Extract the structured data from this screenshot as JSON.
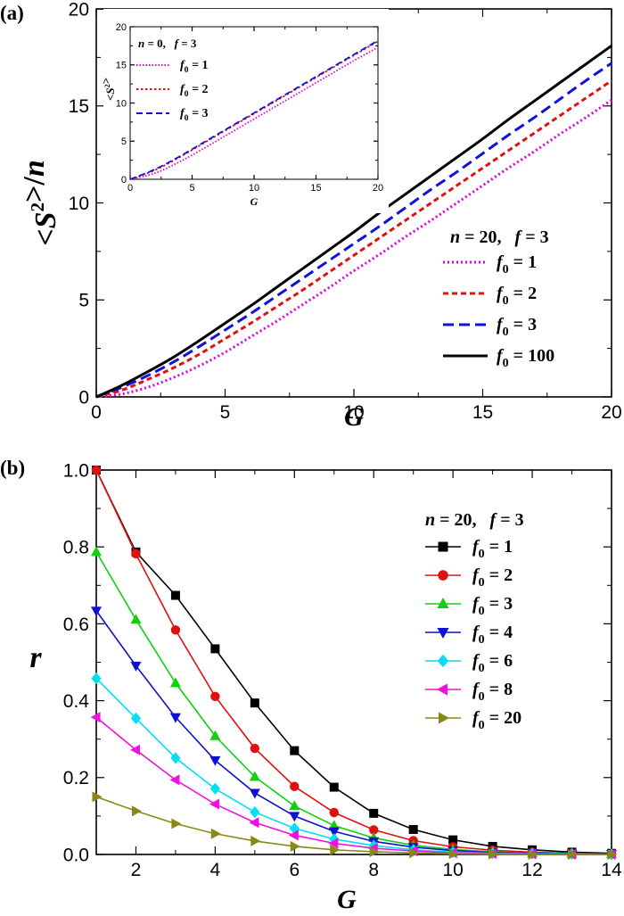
{
  "chart_data": [
    {
      "type": "line",
      "panel_label": "(a)",
      "xlabel": "G",
      "ylabel": "<S²>/n",
      "xlim": [
        0,
        20
      ],
      "ylim": [
        0,
        20
      ],
      "xticks": [
        "0",
        "5",
        "10",
        "15",
        "20"
      ],
      "yticks": [
        "0",
        "5",
        "10",
        "15",
        "20"
      ],
      "legend": {
        "header": "n = 20,   f = 3",
        "placement": "lower-right"
      },
      "series": [
        {
          "name": "f0 = 1",
          "style": "dotted",
          "color": "#e000e0",
          "x": [
            0,
            1,
            2,
            3,
            4,
            5,
            6,
            7,
            8,
            9,
            10,
            11,
            12,
            13,
            14,
            15,
            16,
            17,
            18,
            19,
            20
          ],
          "y": [
            0,
            0.15,
            0.5,
            1.0,
            1.6,
            2.3,
            3.1,
            3.9,
            4.75,
            5.6,
            6.5,
            7.35,
            8.25,
            9.1,
            10.0,
            10.9,
            11.8,
            12.65,
            13.55,
            14.4,
            15.3
          ]
        },
        {
          "name": "f0 = 2",
          "style": "short-dash",
          "color": "#e01010",
          "x": [
            0,
            1,
            2,
            3,
            4,
            5,
            6,
            7,
            8,
            9,
            10,
            11,
            12,
            13,
            14,
            15,
            16,
            17,
            18,
            19,
            20
          ],
          "y": [
            0,
            0.35,
            0.9,
            1.5,
            2.2,
            3.0,
            3.8,
            4.65,
            5.5,
            6.4,
            7.3,
            8.2,
            9.1,
            10.0,
            10.9,
            11.8,
            12.7,
            13.6,
            14.5,
            15.4,
            16.3
          ]
        },
        {
          "name": "f0 = 3",
          "style": "long-dash",
          "color": "#1010e0",
          "x": [
            0,
            1,
            2,
            3,
            4,
            5,
            6,
            7,
            8,
            9,
            10,
            11,
            12,
            13,
            14,
            15,
            16,
            17,
            18,
            19,
            20
          ],
          "y": [
            0,
            0.5,
            1.1,
            1.8,
            2.6,
            3.45,
            4.3,
            5.2,
            6.1,
            7.0,
            7.9,
            8.8,
            9.75,
            10.7,
            11.6,
            12.55,
            13.5,
            14.4,
            15.35,
            16.3,
            17.2
          ]
        },
        {
          "name": "f0 = 100",
          "style": "solid",
          "color": "#000000",
          "x": [
            0,
            1,
            2,
            3,
            4,
            5,
            6,
            7,
            8,
            9,
            10,
            11,
            12,
            13,
            14,
            15,
            16,
            17,
            18,
            19,
            20
          ],
          "y": [
            0,
            0.6,
            1.3,
            2.05,
            2.9,
            3.8,
            4.7,
            5.65,
            6.6,
            7.55,
            8.5,
            9.5,
            10.45,
            11.4,
            12.35,
            13.3,
            14.3,
            15.25,
            16.2,
            17.15,
            18.1
          ]
        }
      ],
      "inset": {
        "xlabel": "G",
        "ylabel": "<S²>",
        "xlim": [
          0,
          20
        ],
        "ylim": [
          0,
          20
        ],
        "xticks": [
          "0",
          "5",
          "10",
          "15",
          "20"
        ],
        "yticks": [
          "0",
          "5",
          "10",
          "15",
          "20"
        ],
        "legend": {
          "header": "n = 0,   f = 3",
          "placement": "top-left"
        },
        "series": [
          {
            "name": "f0 = 1",
            "style": "dotted",
            "color": "#e000e0",
            "x": [
              0,
              2,
              4,
              6,
              8,
              10,
              12,
              14,
              16,
              18,
              20
            ],
            "y": [
              0,
              0.8,
              2.3,
              4.1,
              6.0,
              7.9,
              9.8,
              11.7,
              13.6,
              15.5,
              17.3
            ]
          },
          {
            "name": "f0 = 2",
            "style": "short-dash",
            "color": "#e01010",
            "x": [
              0,
              2,
              4,
              6,
              8,
              10,
              12,
              14,
              16,
              18,
              20
            ],
            "y": [
              0,
              1.2,
              2.9,
              4.8,
              6.7,
              8.6,
              10.5,
              12.4,
              14.3,
              16.2,
              18.1
            ]
          },
          {
            "name": "f0 = 3",
            "style": "long-dash",
            "color": "#1010e0",
            "x": [
              0,
              2,
              4,
              6,
              8,
              10,
              12,
              14,
              16,
              18,
              20
            ],
            "y": [
              0,
              1.3,
              3.0,
              4.9,
              6.8,
              8.7,
              10.6,
              12.5,
              14.4,
              16.3,
              18.2
            ]
          }
        ]
      }
    },
    {
      "type": "line",
      "panel_label": "(b)",
      "xlabel": "G",
      "ylabel": "r",
      "xlim": [
        1,
        14
      ],
      "ylim": [
        0,
        1.0
      ],
      "xticks": [
        "2",
        "4",
        "6",
        "8",
        "10",
        "12",
        "14"
      ],
      "yticks": [
        "0.0",
        "0.2",
        "0.4",
        "0.6",
        "0.8",
        "1.0"
      ],
      "legend": {
        "header": "n = 20,   f = 3",
        "placement": "top-right"
      },
      "series": [
        {
          "name": "f0 = 1",
          "marker": "square",
          "color": "#000000",
          "x": [
            1,
            2,
            3,
            4,
            5,
            6,
            7,
            8,
            9,
            10,
            11,
            12,
            13,
            14
          ],
          "y": [
            1.0,
            0.787,
            0.674,
            0.535,
            0.394,
            0.27,
            0.175,
            0.107,
            0.065,
            0.038,
            0.021,
            0.012,
            0.006,
            0.003
          ]
        },
        {
          "name": "f0 = 2",
          "marker": "circle",
          "color": "#e01010",
          "x": [
            1,
            2,
            3,
            4,
            5,
            6,
            7,
            8,
            9,
            10,
            11,
            12,
            13,
            14
          ],
          "y": [
            1.0,
            0.782,
            0.584,
            0.411,
            0.276,
            0.177,
            0.109,
            0.064,
            0.036,
            0.02,
            0.011,
            0.006,
            0.003,
            0.001
          ]
        },
        {
          "name": "f0 = 3",
          "marker": "triangle-up",
          "color": "#10d010",
          "x": [
            1,
            2,
            3,
            4,
            5,
            6,
            7,
            8,
            9,
            10,
            11,
            12,
            13,
            14
          ],
          "y": [
            0.787,
            0.611,
            0.446,
            0.308,
            0.202,
            0.126,
            0.075,
            0.043,
            0.024,
            0.013,
            0.007,
            0.003,
            0.002,
            0.001
          ]
        },
        {
          "name": "f0 = 4",
          "marker": "triangle-down",
          "color": "#1010d0",
          "x": [
            1,
            2,
            3,
            4,
            5,
            6,
            7,
            8,
            9,
            10,
            11,
            12,
            13,
            14
          ],
          "y": [
            0.634,
            0.491,
            0.357,
            0.245,
            0.16,
            0.1,
            0.06,
            0.034,
            0.019,
            0.01,
            0.005,
            0.003,
            0.001,
            0.001
          ]
        },
        {
          "name": "f0 = 6",
          "marker": "diamond",
          "color": "#00e0f0",
          "x": [
            1,
            2,
            3,
            4,
            5,
            6,
            7,
            8,
            9,
            10,
            11,
            12,
            13,
            14
          ],
          "y": [
            0.458,
            0.354,
            0.251,
            0.171,
            0.11,
            0.068,
            0.04,
            0.023,
            0.012,
            0.006,
            0.003,
            0.002,
            0.001,
            0.0
          ]
        },
        {
          "name": "f0 = 8",
          "marker": "triangle-left",
          "color": "#f010e0",
          "x": [
            1,
            2,
            3,
            4,
            5,
            6,
            7,
            8,
            9,
            10,
            11,
            12,
            13,
            14
          ],
          "y": [
            0.357,
            0.272,
            0.194,
            0.131,
            0.083,
            0.05,
            0.029,
            0.016,
            0.009,
            0.004,
            0.002,
            0.001,
            0.0,
            0.0
          ]
        },
        {
          "name": "f0 = 20",
          "marker": "triangle-right",
          "color": "#888818",
          "x": [
            1,
            2,
            3,
            4,
            5,
            6,
            7,
            8,
            9,
            10,
            11,
            12,
            13,
            14
          ],
          "y": [
            0.15,
            0.113,
            0.08,
            0.054,
            0.035,
            0.021,
            0.012,
            0.007,
            0.004,
            0.002,
            0.001,
            0.0,
            0.0,
            0.0
          ]
        }
      ]
    }
  ]
}
